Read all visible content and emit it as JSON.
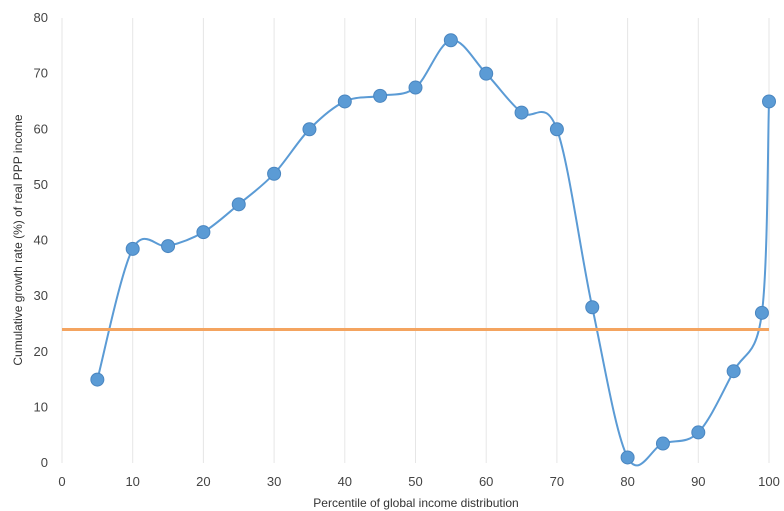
{
  "chart_data": {
    "type": "scatter",
    "xlabel": "Percentile of global income distribution",
    "ylabel": "Cumulative growth rate (%) of real PPP income",
    "xlim": [
      0,
      100
    ],
    "ylim": [
      0,
      80
    ],
    "xticks": [
      0,
      10,
      20,
      30,
      40,
      50,
      60,
      70,
      80,
      90,
      100
    ],
    "yticks": [
      0,
      10,
      20,
      30,
      40,
      50,
      60,
      70,
      80
    ],
    "grid": "vertical",
    "legend": "none",
    "series": [
      {
        "x": [
          5,
          10,
          15,
          20,
          25,
          30,
          35,
          40,
          45,
          50,
          55,
          60,
          65,
          70,
          75,
          80,
          85,
          90,
          95,
          99,
          100
        ],
        "y": [
          15,
          38.5,
          39,
          41.5,
          46.5,
          52,
          60,
          65,
          66,
          67.5,
          76,
          70,
          63,
          60,
          28,
          1,
          3.5,
          5.5,
          16.5,
          27,
          65
        ],
        "color": "#5b9bd5",
        "smooth": true
      }
    ],
    "reference_line": {
      "y": 24,
      "color": "#f4a460"
    }
  }
}
